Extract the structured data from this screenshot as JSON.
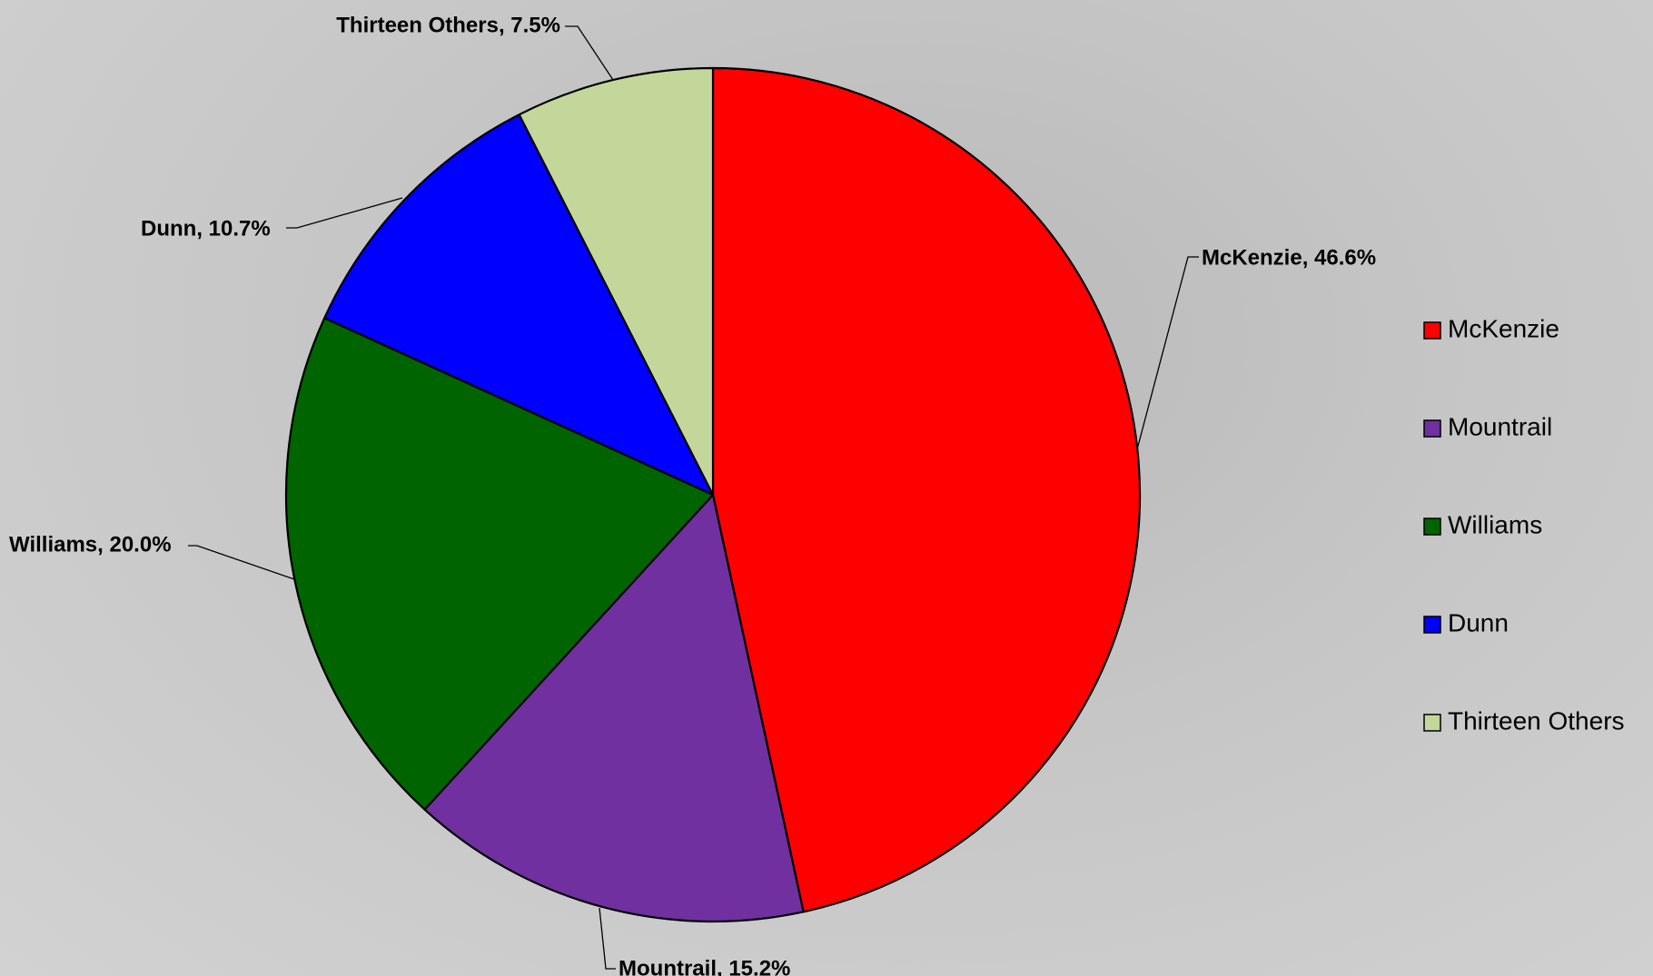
{
  "chart_data": {
    "type": "pie",
    "categories": [
      "McKenzie",
      "Mountrail",
      "Williams",
      "Dunn",
      "Thirteen Others"
    ],
    "values": [
      46.6,
      15.2,
      20.0,
      10.7,
      7.5
    ],
    "unit": "%",
    "colors": [
      "#ff0000",
      "#7030a0",
      "#006400",
      "#0000ff",
      "#c4d79b"
    ],
    "data_labels": [
      "McKenzie, 46.6%",
      "Mountrail, 15.2%",
      "Williams, 20.0%",
      "Dunn, 10.7%",
      "Thirteen Others, 7.5%"
    ],
    "start_angle_deg": 0,
    "direction": "clockwise",
    "legend": {
      "position": "right",
      "entries": [
        "McKenzie",
        "Mountrail",
        "Williams",
        "Dunn",
        "Thirteen Others"
      ]
    }
  }
}
